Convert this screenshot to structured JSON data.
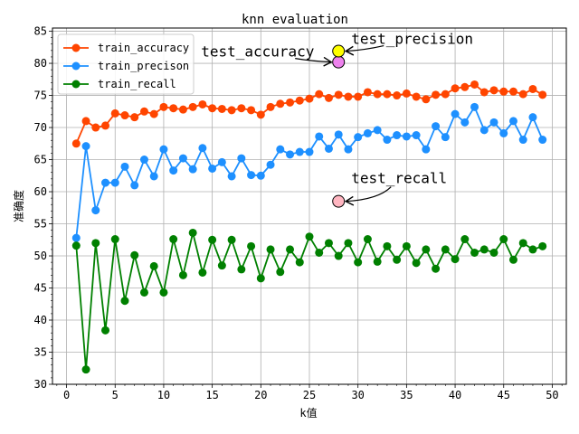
{
  "chart_data": {
    "type": "line",
    "title": "knn evaluation",
    "xlabel": "k值",
    "ylabel": "准确度",
    "xlim": [
      -1.45,
      51.45
    ],
    "ylim": [
      30,
      85.5
    ],
    "xticks": [
      0,
      5,
      10,
      15,
      20,
      25,
      30,
      35,
      40,
      45,
      50
    ],
    "yticks": [
      30,
      35,
      40,
      45,
      50,
      55,
      60,
      65,
      70,
      75,
      80,
      85
    ],
    "grid": true,
    "legend_position": "top-left",
    "x": [
      1,
      2,
      3,
      4,
      5,
      6,
      7,
      8,
      9,
      10,
      11,
      12,
      13,
      14,
      15,
      16,
      17,
      18,
      19,
      20,
      21,
      22,
      23,
      24,
      25,
      26,
      27,
      28,
      29,
      30,
      31,
      32,
      33,
      34,
      35,
      36,
      37,
      38,
      39,
      40,
      41,
      42,
      43,
      44,
      45,
      46,
      47,
      48,
      49
    ],
    "series": [
      {
        "name": "train_accuracy",
        "color": "#ff4500",
        "values": [
          67.5,
          71.0,
          70.0,
          70.3,
          72.2,
          71.9,
          71.6,
          72.5,
          72.1,
          73.2,
          73.0,
          72.8,
          73.2,
          73.6,
          73.0,
          72.9,
          72.7,
          73.0,
          72.7,
          72.0,
          73.2,
          73.7,
          73.9,
          74.2,
          74.5,
          75.2,
          74.6,
          75.1,
          74.8,
          74.8,
          75.5,
          75.2,
          75.2,
          75.0,
          75.3,
          74.8,
          74.4,
          75.1,
          75.2,
          76.1,
          76.3,
          76.7,
          75.5,
          75.8,
          75.6,
          75.6,
          75.2,
          76.0,
          75.1
        ]
      },
      {
        "name": "train_precison",
        "color": "#1e90ff",
        "values": [
          52.8,
          67.1,
          57.1,
          61.4,
          61.4,
          63.9,
          61.0,
          65.0,
          62.4,
          66.6,
          63.3,
          65.2,
          63.5,
          66.8,
          63.6,
          64.6,
          62.4,
          65.2,
          62.6,
          62.5,
          64.2,
          66.6,
          65.8,
          66.2,
          66.2,
          68.6,
          66.7,
          68.9,
          66.6,
          68.5,
          69.1,
          69.6,
          68.1,
          68.8,
          68.6,
          68.8,
          66.6,
          70.2,
          68.5,
          72.1,
          70.8,
          73.2,
          69.6,
          70.8,
          69.1,
          71.0,
          68.1,
          71.6,
          68.1
        ]
      },
      {
        "name": "train_recall",
        "color": "#008000",
        "values": [
          51.6,
          32.3,
          52.0,
          38.4,
          52.6,
          43.0,
          50.1,
          44.3,
          48.4,
          44.3,
          52.6,
          47.0,
          53.6,
          47.4,
          52.5,
          48.5,
          52.5,
          47.9,
          51.5,
          46.5,
          51.0,
          47.5,
          51.0,
          49.0,
          53.0,
          50.5,
          52.0,
          50.0,
          52.0,
          49.0,
          52.6,
          49.1,
          51.5,
          49.4,
          51.5,
          48.9,
          51.0,
          48.0,
          51.0,
          49.5,
          52.6,
          50.5,
          51.0,
          50.5,
          52.6,
          49.4,
          52.0,
          51.0,
          51.5
        ]
      }
    ],
    "annotated_points": [
      {
        "label": "test_accuracy",
        "x": 28,
        "y": 80.2,
        "color": "#ee82ee"
      },
      {
        "label": "test_precision",
        "x": 28,
        "y": 81.9,
        "color": "#ffff00"
      },
      {
        "label": "test_recall",
        "x": 28,
        "y": 58.5,
        "color": "#ffb6c1"
      }
    ]
  }
}
